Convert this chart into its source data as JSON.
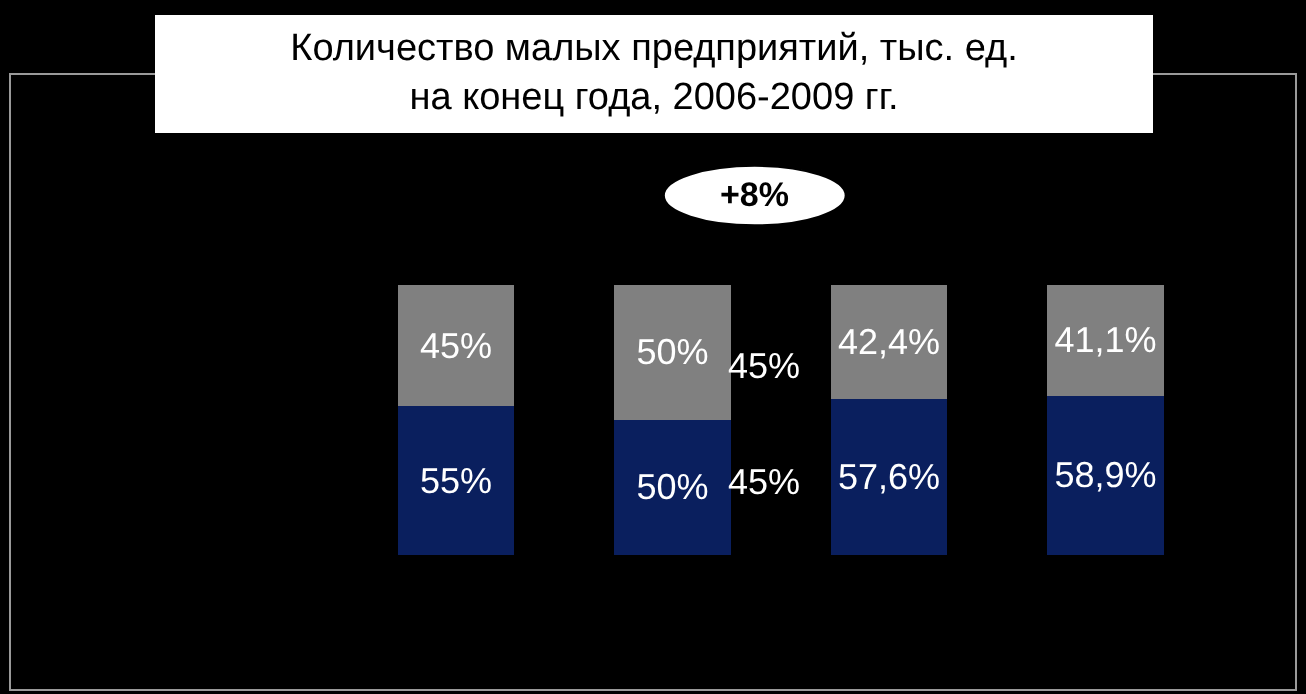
{
  "chart_data": {
    "type": "bar",
    "title": "Количество малых предприятий, тыс. ед.\nна конец года, 2006-2009 гг.",
    "categories": [
      null,
      null,
      null,
      null
    ],
    "stacked": true,
    "series": [
      {
        "color": "#0a1f5e",
        "values": [
          55,
          50,
          57.6,
          58.9
        ],
        "value_labels": [
          "55%",
          "50%",
          "57,6%",
          "58,9%"
        ]
      },
      {
        "color": "#808080",
        "values": [
          45,
          50,
          42.4,
          41.1
        ],
        "value_labels": [
          "45%",
          "50%",
          "42,4%",
          "41,1%"
        ]
      }
    ],
    "annotations": [
      "+8%",
      "45%",
      "45%"
    ]
  }
}
